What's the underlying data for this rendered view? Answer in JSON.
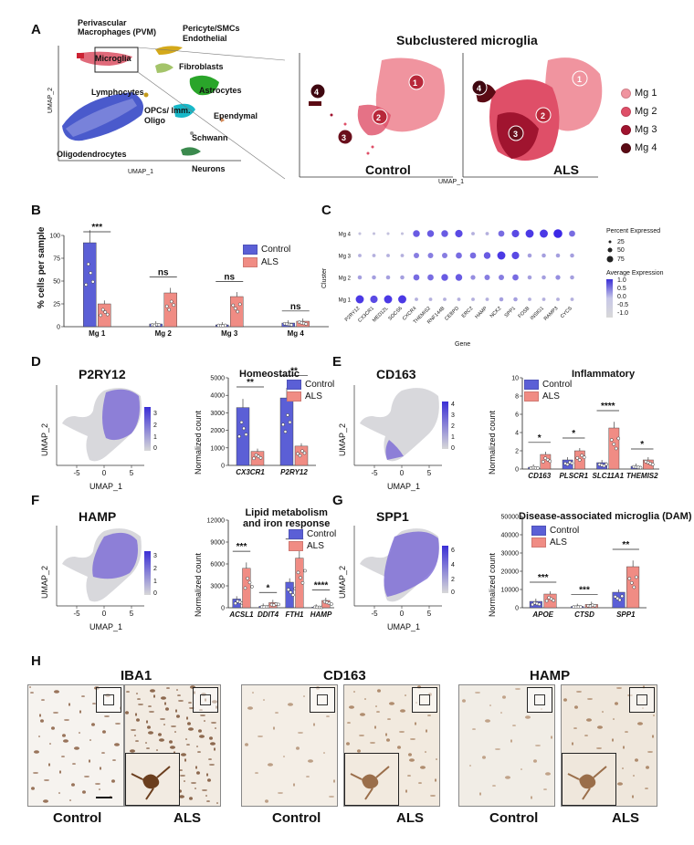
{
  "panel_labels": {
    "A": "A",
    "B": "B",
    "C": "C",
    "D": "D",
    "E": "E",
    "F": "F",
    "G": "G",
    "H": "H"
  },
  "panel_a": {
    "title": "Subclustered microglia",
    "clusters": {
      "pvm": "Perivascular Macrophages (PVM)",
      "microglia": "Microglia",
      "pericyte": "Pericyte/SMCs Endothelial",
      "fibroblasts": "Fibroblasts",
      "astrocytes": "Astrocytes",
      "lymphocytes": "Lymphocytes",
      "opcs": "OPCs/ Imm. Oligo",
      "ependymal": "Ependymal",
      "schwann": "Schwann",
      "oligodendrocytes": "Oligodendrocytes",
      "neurons": "Neurons"
    },
    "umap1": "UMAP_1",
    "umap2": "UMAP_2",
    "ticks_x_big": [
      "-10",
      "-5",
      "0",
      "5",
      "10",
      "15"
    ],
    "ticks_y_big": [
      "10",
      "0",
      "-10"
    ],
    "ticks_x_small": [
      "-8",
      "-4",
      "0",
      "4"
    ],
    "ticks_y_small": [
      "4",
      "2",
      "0",
      "-2",
      "-4"
    ],
    "control": "Control",
    "als": "ALS",
    "numbers": [
      "1",
      "2",
      "3",
      "4"
    ],
    "legend": [
      {
        "label": "Mg 1",
        "color": "#f0949f"
      },
      {
        "label": "Mg 2",
        "color": "#df4f68"
      },
      {
        "label": "Mg 3",
        "color": "#a0142f"
      },
      {
        "label": "Mg 4",
        "color": "#5b0a14"
      }
    ]
  },
  "panel_b": {
    "ylabel": "% cells per sample",
    "legend": [
      {
        "label": "Control",
        "color": "#5b5fd6"
      },
      {
        "label": "ALS",
        "color": "#f08c84"
      }
    ],
    "sig": [
      "***",
      "ns",
      "ns",
      "ns"
    ]
  },
  "panel_c": {
    "ylabel": "Cluster",
    "xlabel": "Gene",
    "rows": [
      "Mg 4",
      "Mg 3",
      "Mg 2",
      "Mg 1"
    ],
    "genes": [
      "P2RY12",
      "CX3CR1",
      "MED12L",
      "SOCS6",
      "CXCR4",
      "THEMIS2",
      "RNF144B",
      "CEBPD",
      "ERC2",
      "HAMP",
      "NCK2",
      "SPP1",
      "FOSB",
      "INSIG1",
      "RAMP3",
      "CYCS"
    ],
    "pct_title": "Percent Expressed",
    "pct_vals": [
      "25",
      "50",
      "75"
    ],
    "avg_title": "Average Expression",
    "avg_vals": [
      "1.0",
      "0.5",
      "0.0",
      "-0.5",
      "-1.0"
    ]
  },
  "panel_d": {
    "umap_title": "P2RY12",
    "scale": [
      "3",
      "2",
      "1",
      "0"
    ],
    "ticks_x": [
      "-5",
      "0",
      "5"
    ],
    "bar_title": "Homeostatic",
    "ylabel": "Normalized count",
    "yticks": [
      "5000",
      "4000",
      "3000",
      "2000",
      "1000",
      "0"
    ],
    "sig": [
      "**",
      "**"
    ]
  },
  "panel_e": {
    "umap_title": "CD163",
    "scale": [
      "4",
      "3",
      "2",
      "1",
      "0"
    ],
    "bar_title": "Inflammatory",
    "yticks": [
      "10",
      "8",
      "6",
      "4",
      "2",
      "0"
    ],
    "sig": [
      "*",
      "*",
      "****",
      "*"
    ]
  },
  "panel_f": {
    "umap_title": "HAMP",
    "scale": [
      "3",
      "2",
      "1",
      "0"
    ],
    "bar_title": "Lipid metabolism and iron response",
    "bar_title_1": "Lipid metabolism",
    "bar_title_2": "and iron response",
    "yticks": [
      "12000",
      "9000",
      "6000",
      "3000",
      "0"
    ],
    "sig": [
      "***",
      "*",
      "**",
      "****"
    ]
  },
  "panel_g": {
    "umap_title": "SPP1",
    "scale": [
      "6",
      "4",
      "2",
      "0"
    ],
    "bar_title": "Disease-associated microglia (DAM)",
    "yticks": [
      "50000",
      "40000",
      "30000",
      "20000",
      "10000",
      "0"
    ],
    "sig": [
      "***",
      "***",
      "**"
    ]
  },
  "panel_h": {
    "stains": [
      "IBA1",
      "CD163",
      "HAMP"
    ],
    "control": "Control",
    "als": "ALS"
  },
  "chart_data": [
    {
      "type": "bar",
      "id": "B",
      "title": "",
      "ylabel": "% cells per sample",
      "ylim": [
        0,
        100
      ],
      "categories": [
        "Mg 1",
        "Mg 2",
        "Mg 3",
        "Mg 4"
      ],
      "yticks": [
        0,
        25,
        50,
        75,
        100
      ],
      "series": [
        {
          "name": "Control",
          "values": [
            92,
            3,
            2,
            4
          ]
        },
        {
          "name": "ALS",
          "values": [
            25,
            37,
            33,
            6
          ]
        }
      ]
    },
    {
      "type": "bar",
      "id": "D",
      "title": "Homeostatic",
      "ylabel": "Normalized count",
      "ylim": [
        0,
        5000
      ],
      "categories": [
        "CX3CR1",
        "P2RY12"
      ],
      "yticks": [
        0,
        1000,
        2000,
        3000,
        4000,
        5000
      ],
      "series": [
        {
          "name": "Control",
          "values": [
            3300,
            3850
          ]
        },
        {
          "name": "ALS",
          "values": [
            800,
            1100
          ]
        }
      ]
    },
    {
      "type": "bar",
      "id": "E",
      "title": "Inflammatory",
      "ylabel": "Normalized count",
      "ylim": [
        0,
        10
      ],
      "categories": [
        "CD163",
        "PLSCR1",
        "SLC11A1",
        "THEMIS2"
      ],
      "yticks": [
        0,
        2,
        4,
        6,
        8,
        10
      ],
      "series": [
        {
          "name": "Control",
          "values": [
            0.2,
            1.0,
            0.7,
            0.3
          ]
        },
        {
          "name": "ALS",
          "values": [
            1.6,
            2.0,
            4.5,
            1.0
          ]
        }
      ]
    },
    {
      "type": "bar",
      "id": "F",
      "title": "Lipid metabolism and iron response",
      "ylabel": "Normalized count",
      "ylim": [
        0,
        12000
      ],
      "categories": [
        "ACSL1",
        "DDIT4",
        "FTH1",
        "HAMP"
      ],
      "yticks": [
        0,
        3000,
        6000,
        9000,
        12000
      ],
      "series": [
        {
          "name": "Control",
          "values": [
            1200,
            200,
            3500,
            100
          ]
        },
        {
          "name": "ALS",
          "values": [
            5400,
            700,
            6800,
            1000
          ]
        }
      ]
    },
    {
      "type": "bar",
      "id": "G",
      "title": "Disease-associated microglia (DAM)",
      "ylabel": "Normalized count",
      "ylim": [
        0,
        50000
      ],
      "categories": [
        "APOE",
        "CTSD",
        "SPP1"
      ],
      "yticks": [
        0,
        10000,
        20000,
        30000,
        40000,
        50000
      ],
      "series": [
        {
          "name": "Control",
          "values": [
            3500,
            700,
            8500
          ]
        },
        {
          "name": "ALS",
          "values": [
            7500,
            1800,
            22500
          ]
        }
      ]
    }
  ]
}
